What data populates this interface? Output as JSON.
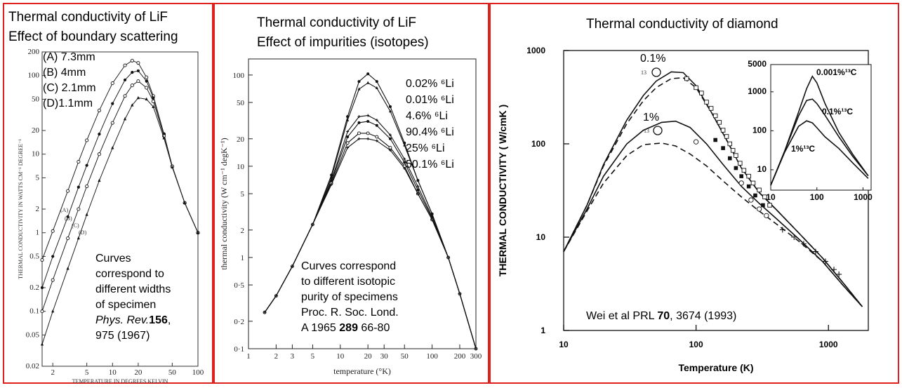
{
  "colors": {
    "border": "#e0201c",
    "ink": "#000000"
  },
  "panels": {
    "left": {
      "title1": "Thermal conductivity of LiF",
      "title2": "Effect of boundary scattering",
      "legend": [
        "(A) 7.3mm",
        "(B) 4mm",
        "(C) 2.1mm",
        "(D)1.1mm"
      ],
      "curve_tags": [
        "(A)",
        "(B)",
        "(C)",
        "(D)"
      ],
      "note": [
        "Curves",
        "correspond to",
        "different widths",
        "of specimen"
      ],
      "ref_journal": "Phys. Rev.",
      "ref_volume": "156",
      "ref_rest": ",",
      "ref_line2": "975 (1967)"
    },
    "middle": {
      "title1": "Thermal conductivity of LiF",
      "title2": "Effect of impurities (isotopes)",
      "legend": [
        "0.02% ⁶Li",
        "0.01% ⁶Li",
        "4.6% ⁶Li",
        "90.4% ⁶Li",
        "25% ⁶Li",
        "50.1% ⁶Li"
      ],
      "note": [
        "Curves correspond",
        "to different isotopic",
        "purity of specimens",
        "Proc. R. Soc. Lond."
      ],
      "ref_pre": "A 1965 ",
      "ref_bold": "289",
      "ref_post": " 66-80"
    },
    "right": {
      "title": "Thermal conductivity of diamond",
      "label_01": "0.1%",
      "label_1": "1%",
      "sup13": "13",
      "ref_pre": "Wei et al PRL ",
      "ref_bold": "70",
      "ref_post": ", 3674 (1993)",
      "inset_labels": [
        "0.001%¹³C",
        "0.1%¹³C",
        "1%¹³C"
      ]
    }
  },
  "chart_data": [
    {
      "type": "scatter",
      "xlabel": "TEMPERATURE IN DEGREES KELVIN",
      "ylabel": "THERMAL CONDUCTIVITY IN WATTS CM⁻¹ DEGREE⁻¹",
      "xscale": "log",
      "yscale": "log",
      "xlim": [
        1.5,
        100
      ],
      "ylim": [
        0.02,
        200
      ],
      "xticks": [
        2,
        5,
        10,
        20,
        50,
        100
      ],
      "yticks": [
        0.02,
        0.05,
        0.1,
        0.2,
        0.5,
        1,
        2,
        5,
        10,
        20,
        50,
        100,
        200
      ],
      "ytick_labels": [
        "0.02",
        "0.05",
        "0.1",
        "0.2",
        "0.5",
        "1",
        "2",
        "5",
        "10",
        "20",
        "50",
        "100",
        "200"
      ],
      "xtick_labels": [
        "2",
        "5",
        "10",
        "20",
        "50",
        "100"
      ],
      "series": [
        {
          "name": "(A) 7.3mm",
          "marker": "open",
          "x": [
            1.5,
            2,
            3,
            4,
            5,
            7,
            10,
            14,
            17,
            20,
            25,
            30,
            40,
            50,
            70,
            100
          ],
          "y": [
            0.45,
            1.05,
            3.4,
            8,
            15,
            36,
            80,
            135,
            155,
            145,
            95,
            55,
            18,
            7,
            2.4,
            1.0
          ]
        },
        {
          "name": "(B) 4mm",
          "marker": "filled",
          "x": [
            1.5,
            2,
            3,
            4,
            5,
            7,
            10,
            14,
            17,
            20,
            25,
            30,
            40,
            50,
            70,
            100
          ],
          "y": [
            0.2,
            0.5,
            1.6,
            3.8,
            7.2,
            18,
            44,
            88,
            110,
            115,
            85,
            52,
            18,
            7,
            2.4,
            1.0
          ]
        },
        {
          "name": "(C) 2.1mm",
          "marker": "open",
          "x": [
            1.5,
            2,
            3,
            4,
            5,
            7,
            10,
            14,
            17,
            20,
            25,
            30,
            40,
            50,
            70,
            100
          ],
          "y": [
            0.1,
            0.25,
            0.85,
            2,
            3.9,
            10,
            25,
            55,
            75,
            85,
            70,
            47,
            17,
            7,
            2.4,
            1.0
          ]
        },
        {
          "name": "(D)1.1mm",
          "marker": "triangle",
          "x": [
            1.5,
            2,
            3,
            4,
            5,
            7,
            10,
            14,
            17,
            20,
            25,
            30,
            40,
            50,
            70,
            100
          ],
          "y": [
            0.038,
            0.1,
            0.35,
            0.85,
            1.7,
            4.6,
            12,
            28,
            42,
            52,
            50,
            40,
            16,
            6.8,
            2.4,
            1.0
          ]
        }
      ]
    },
    {
      "type": "line",
      "xlabel": "temperature (°K)",
      "ylabel": "thermal conductivity (W cm⁻¹ degK⁻¹)",
      "xscale": "log",
      "yscale": "log",
      "xlim": [
        1,
        300
      ],
      "ylim": [
        0.1,
        150
      ],
      "xticks": [
        1,
        2,
        3,
        5,
        10,
        20,
        30,
        50,
        100,
        200,
        300
      ],
      "xtick_labels": [
        "1",
        "2",
        "3",
        "5",
        "10",
        "20",
        "30",
        "50",
        "100",
        "200",
        "300"
      ],
      "yticks": [
        0.1,
        0.2,
        0.5,
        1,
        2,
        5,
        10,
        20,
        50,
        100
      ],
      "ytick_labels": [
        "0·1",
        "0·2",
        "0·5",
        "1",
        "2",
        "5",
        "10",
        "20",
        "50",
        "100"
      ],
      "series": [
        {
          "name": "0.02% ⁶Li",
          "x": [
            1.5,
            2,
            3,
            5,
            8,
            12,
            16,
            20,
            25,
            35,
            50,
            70,
            100,
            150,
            200,
            300
          ],
          "y": [
            0.25,
            0.38,
            0.8,
            2.3,
            8,
            35,
            85,
            103,
            85,
            45,
            18,
            7,
            3,
            1,
            0.4,
            0.1
          ]
        },
        {
          "name": "0.01% ⁶Li",
          "x": [
            1.5,
            2,
            3,
            5,
            8,
            12,
            16,
            20,
            25,
            35,
            50,
            70,
            100,
            150,
            200,
            300
          ],
          "y": [
            0.25,
            0.38,
            0.8,
            2.3,
            7.5,
            32,
            70,
            82,
            72,
            40,
            17,
            7,
            3,
            1,
            0.4,
            0.1
          ]
        },
        {
          "name": "4.6% ⁶Li",
          "x": [
            1.5,
            2,
            3,
            5,
            8,
            12,
            16,
            20,
            25,
            35,
            50,
            70,
            100,
            150,
            200,
            300
          ],
          "y": [
            0.25,
            0.38,
            0.8,
            2.3,
            7,
            24,
            35,
            36,
            32,
            22,
            12,
            6,
            2.8,
            1,
            0.4,
            0.1
          ]
        },
        {
          "name": "90.4% ⁶Li",
          "x": [
            1.5,
            2,
            3,
            5,
            8,
            12,
            16,
            20,
            25,
            35,
            50,
            70,
            100,
            150,
            200,
            300
          ],
          "y": [
            0.25,
            0.38,
            0.8,
            2.3,
            6.8,
            21,
            30,
            31,
            28,
            20,
            11,
            5.5,
            2.7,
            1,
            0.4,
            0.1
          ]
        },
        {
          "name": "25% ⁶Li",
          "x": [
            1.5,
            2,
            3,
            5,
            8,
            12,
            16,
            20,
            25,
            35,
            50,
            70,
            100,
            150,
            200,
            300
          ],
          "y": [
            0.25,
            0.38,
            0.8,
            2.3,
            6.5,
            18,
            23,
            23,
            21,
            16,
            10,
            5,
            2.6,
            1,
            0.4,
            0.1
          ]
        },
        {
          "name": "50.1% ⁶Li",
          "x": [
            1.5,
            2,
            3,
            5,
            8,
            12,
            16,
            20,
            25,
            35,
            50,
            70,
            100,
            150,
            200,
            300
          ],
          "y": [
            0.25,
            0.38,
            0.8,
            2.3,
            6.3,
            16,
            20,
            20,
            19,
            15,
            9.5,
            5,
            2.6,
            1,
            0.4,
            0.1
          ]
        }
      ]
    },
    {
      "type": "line",
      "xlabel": "Temperature (K)",
      "ylabel": "THERMAL CONDUCTIVITY ( W/cmK )",
      "xscale": "log",
      "yscale": "log",
      "xlim": [
        10,
        2000
      ],
      "ylim": [
        1,
        1000
      ],
      "xticks": [
        10,
        100,
        1000
      ],
      "xtick_labels": [
        "10",
        "100",
        "1000"
      ],
      "yticks": [
        1,
        10,
        100,
        1000
      ],
      "ytick_labels": [
        "1",
        "10",
        "100",
        "1000"
      ],
      "series": [
        {
          "name": "0.1%",
          "style": "solid",
          "x": [
            10,
            15,
            20,
            30,
            40,
            50,
            65,
            80,
            100,
            130,
            170,
            220,
            300,
            400,
            600,
            900,
            1300,
            1800
          ],
          "y": [
            7,
            22,
            60,
            180,
            330,
            470,
            590,
            580,
            420,
            220,
            110,
            55,
            30,
            20,
            11,
            6,
            3.2,
            1.8
          ]
        },
        {
          "name": "0.1% (dashed)",
          "style": "dashed",
          "x": [
            10,
            15,
            20,
            30,
            40,
            50,
            65,
            80,
            100,
            130,
            170,
            220,
            300,
            400,
            600,
            900,
            1300,
            1800
          ],
          "y": [
            7,
            22,
            58,
            165,
            290,
            400,
            500,
            510,
            400,
            220,
            110,
            55,
            30,
            20,
            11,
            6,
            3.2,
            1.8
          ]
        },
        {
          "name": "1%",
          "style": "solid",
          "x": [
            10,
            15,
            20,
            30,
            40,
            55,
            70,
            90,
            120,
            160,
            220,
            300,
            400,
            600,
            900,
            1300,
            1800
          ],
          "y": [
            7,
            20,
            45,
            100,
            140,
            170,
            175,
            150,
            100,
            60,
            35,
            23,
            16,
            9.5,
            5.5,
            3,
            1.8
          ]
        },
        {
          "name": "1% (dashed)",
          "style": "dashed",
          "x": [
            10,
            15,
            20,
            30,
            40,
            55,
            70,
            90,
            120,
            160,
            220,
            300,
            400,
            600,
            900,
            1300,
            1800
          ],
          "y": [
            7,
            19,
            38,
            75,
            98,
            102,
            95,
            78,
            58,
            40,
            27,
            19,
            14,
            9,
            5.5,
            3,
            1.8
          ]
        }
      ],
      "measured": {
        "open_squares": {
          "x": [
            85,
            100,
            110,
            120,
            130,
            140,
            150,
            160,
            170,
            180,
            190,
            200,
            215,
            230,
            250,
            270,
            300,
            330,
            360
          ],
          "y": [
            500,
            400,
            350,
            280,
            240,
            200,
            170,
            140,
            120,
            100,
            85,
            75,
            62,
            52,
            45,
            38,
            32,
            27,
            22
          ]
        },
        "filled_squares": {
          "x": [
            140,
            160,
            180,
            200,
            220,
            250,
            280,
            320
          ],
          "y": [
            110,
            90,
            70,
            55,
            45,
            35,
            28,
            22
          ]
        },
        "open_circles": {
          "x": [
            100,
            220,
            260,
            300,
            340
          ],
          "y": [
            105,
            38,
            25,
            20,
            17
          ]
        },
        "crosses": {
          "x": [
            450,
            550,
            650,
            800,
            950,
            1100,
            1200
          ],
          "y": [
            12,
            10,
            8.5,
            7,
            5.5,
            4.5,
            4
          ]
        }
      },
      "inset": {
        "type": "line",
        "xscale": "log",
        "yscale": "log",
        "xlim": [
          10,
          1500
        ],
        "ylim": [
          3,
          5000
        ],
        "xticks": [
          10,
          100,
          1000
        ],
        "xtick_labels": [
          "10",
          "100",
          "1000"
        ],
        "yticks": [
          10,
          100,
          1000,
          5000
        ],
        "ytick_labels": [
          "10",
          "100",
          "1000",
          "5000"
        ],
        "series": [
          {
            "name": "0.001%¹³C",
            "x": [
              10,
              20,
              40,
              60,
              80,
              100,
              150,
              300,
              600,
              1300
            ],
            "y": [
              4,
              30,
              300,
              1200,
              2500,
              1700,
              500,
              90,
              25,
              7
            ]
          },
          {
            "name": "0.1%¹³C",
            "x": [
              10,
              20,
              40,
              60,
              80,
              100,
              150,
              300,
              600,
              1300
            ],
            "y": [
              4,
              30,
              240,
              600,
              650,
              500,
              250,
              70,
              22,
              7
            ]
          },
          {
            "name": "1%¹³C",
            "x": [
              10,
              20,
              40,
              60,
              80,
              100,
              150,
              300,
              600,
              1300
            ],
            "y": [
              4,
              28,
              130,
              180,
              160,
              120,
              70,
              35,
              15,
              6
            ]
          }
        ]
      }
    }
  ]
}
